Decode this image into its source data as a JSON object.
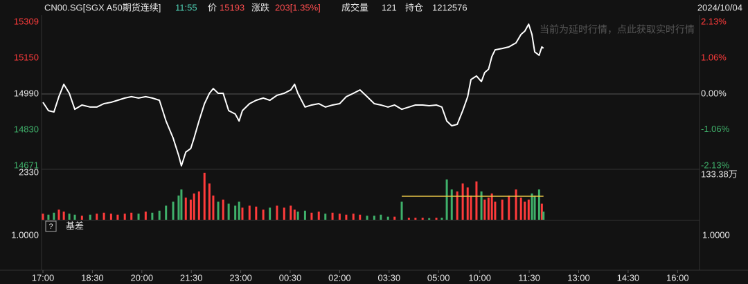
{
  "chart_data": {
    "type": "line",
    "header": {
      "symbol": "CN00.SG[SGX A50期货连续]",
      "time": "11:55",
      "price_label": "价",
      "price": 15193,
      "change_label": "涨跌",
      "change": "203[1.35%]",
      "volume_label": "成交量",
      "volume": 121,
      "oi_label": "持仓",
      "open_interest": 1212576,
      "date": "2024/10/04"
    },
    "watermark": "当前为延时行情，点此获取实时行情",
    "color": "#ffffff",
    "up_color": "#ff3b3b",
    "down_color": "#3fb06a",
    "xlim": [
      0,
      1200
    ],
    "xticks": [
      {
        "value": 0,
        "label": "17:00"
      },
      {
        "value": 90,
        "label": "18:30"
      },
      {
        "value": 180,
        "label": "20:00"
      },
      {
        "value": 270,
        "label": "21:30"
      },
      {
        "value": 360,
        "label": "23:00"
      },
      {
        "value": 450,
        "label": "00:30"
      },
      {
        "value": 540,
        "label": "02:00"
      },
      {
        "value": 630,
        "label": "03:30"
      },
      {
        "value": 720,
        "label": "05:00"
      },
      {
        "value": 795,
        "label": "10:00"
      },
      {
        "value": 885,
        "label": "11:30"
      },
      {
        "value": 975,
        "label": "13:00"
      },
      {
        "value": 1065,
        "label": "14:30"
      },
      {
        "value": 1155,
        "label": "16:00"
      }
    ],
    "ylim": [
      14671,
      15309
    ],
    "yticks": [
      15309,
      15150,
      14990,
      14830,
      14671
    ],
    "y2lim": [
      -2.13,
      2.13
    ],
    "y2ticks": [
      {
        "value": 2.13,
        "label": "2.13%"
      },
      {
        "value": 1.06,
        "label": "1.06%"
      },
      {
        "value": 0,
        "label": "0.00%"
      },
      {
        "value": -1.06,
        "label": "-1.06%"
      },
      {
        "value": -2.13,
        "label": "-2.13%"
      }
    ],
    "x": [
      0,
      10,
      20,
      29,
      38,
      48,
      58,
      71,
      86,
      98,
      111,
      124,
      136,
      149,
      161,
      174,
      187,
      199,
      212,
      224,
      237,
      247,
      252,
      260,
      269,
      275,
      284,
      294,
      303,
      310,
      319,
      328,
      338,
      350,
      357,
      363,
      376,
      388,
      401,
      413,
      426,
      439,
      451,
      458,
      464,
      477,
      489,
      502,
      514,
      527,
      540,
      552,
      565,
      577,
      590,
      603,
      615,
      628,
      640,
      653,
      666,
      678,
      691,
      703,
      716,
      726,
      735,
      744,
      754,
      764,
      773,
      779,
      789,
      798,
      804,
      811,
      817,
      823,
      836,
      848,
      861,
      870,
      877,
      884,
      890,
      895,
      903,
      908,
      911
    ],
    "values": [
      14953,
      14916,
      14910,
      14978,
      15033,
      14993,
      14922,
      14941,
      14932,
      14932,
      14947,
      14953,
      14962,
      14972,
      14978,
      14972,
      14978,
      14972,
      14962,
      14870,
      14794,
      14717,
      14671,
      14732,
      14748,
      14794,
      14870,
      14947,
      14993,
      15014,
      14993,
      14993,
      14916,
      14901,
      14870,
      14916,
      14947,
      14962,
      14972,
      14962,
      14984,
      14993,
      15008,
      15033,
      14993,
      14932,
      14941,
      14947,
      14932,
      14941,
      14947,
      14978,
      14993,
      15008,
      14978,
      14947,
      14941,
      14932,
      14941,
      14922,
      14932,
      14941,
      14941,
      14938,
      14941,
      14932,
      14870,
      14849,
      14855,
      14916,
      14978,
      15054,
      15070,
      15045,
      15085,
      15100,
      15156,
      15186,
      15192,
      15199,
      15217,
      15254,
      15269,
      15300,
      15254,
      15177,
      15162,
      15199,
      15193
    ],
    "volume": {
      "ylim": [
        0,
        2330
      ],
      "yticks": [
        2330
      ],
      "right_label": "133.38万",
      "level": 1165,
      "level_color": "#e8c547",
      "values": [
        300,
        250,
        350,
        500,
        400,
        300,
        250,
        200,
        250,
        300,
        350,
        300,
        250,
        300,
        350,
        300,
        400,
        350,
        450,
        700,
        900,
        1200,
        1500,
        1100,
        1000,
        1300,
        1400,
        2330,
        1800,
        1200,
        900,
        1000,
        800,
        700,
        900,
        600,
        700,
        650,
        500,
        600,
        700,
        600,
        700,
        500,
        400,
        450,
        350,
        400,
        300,
        350,
        300,
        250,
        300,
        250,
        200,
        200,
        250,
        150,
        150,
        900,
        100,
        100,
        100,
        80,
        100,
        100,
        2000,
        1500,
        1400,
        1800,
        1600,
        1200,
        1900,
        1400,
        1000,
        1100,
        1300,
        900,
        1000,
        1200,
        1500,
        1100,
        900,
        1000,
        1300,
        1200,
        1500,
        800,
        400
      ]
    },
    "basis": {
      "help": "?",
      "label": "基差",
      "yticks": [
        {
          "value": 1,
          "label": "1.0000"
        }
      ],
      "y2ticks": [
        {
          "value": 1,
          "label": "1.0000"
        }
      ]
    }
  }
}
